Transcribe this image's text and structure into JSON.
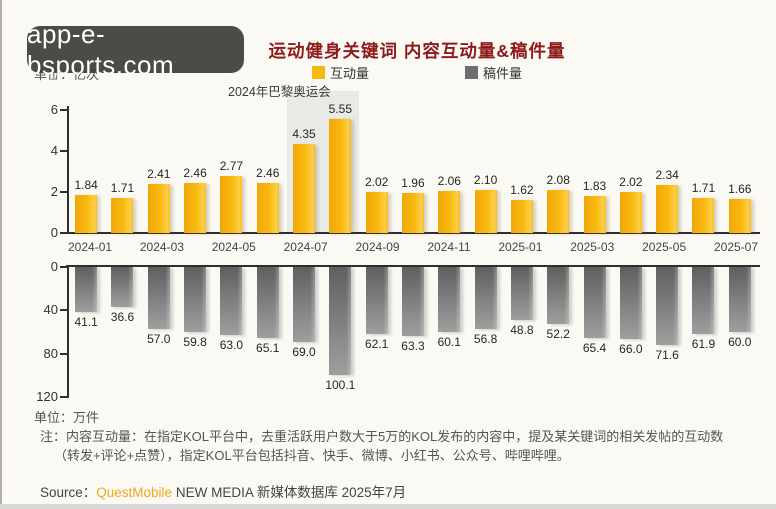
{
  "watermark": {
    "text": "app-e-bsports.com"
  },
  "title": "运动健身关键词 内容互动量&稿件量",
  "legend": {
    "interaction": {
      "label": "互动量",
      "color": "#F5B90F"
    },
    "articles": {
      "label": "稿件量",
      "color": "#6e6e6e"
    }
  },
  "units": {
    "top": "单位：亿次",
    "bottom": "单位：万件"
  },
  "annotation": "2024年巴黎奥运会",
  "note": {
    "line1": "注：内容互动量：在指定KOL平台中，去重活跃用户数大于5万的KOL发布的内容中，提及某关键词的相关发帖的互动数",
    "line2": "（转发+评论+点赞），指定KOL平台包括抖音、快手、微博、小红书、公众号、哔哩哔哩。"
  },
  "source": {
    "prefix": "Source：",
    "brand": "QuestMobile",
    "rest": " NEW MEDIA 新媒体数据库 2025年7月"
  },
  "chart_data": {
    "type": "bar",
    "x": [
      "2024-01",
      "2024-02",
      "2024-03",
      "2024-04",
      "2024-05",
      "2024-06",
      "2024-07",
      "2024-08",
      "2024-09",
      "2024-10",
      "2024-11",
      "2024-12",
      "2025-01",
      "2025-02",
      "2025-03",
      "2025-04",
      "2025-05",
      "2025-06",
      "2025-07"
    ],
    "x_tick_labels": [
      "2024-01",
      "2024-03",
      "2024-05",
      "2024-07",
      "2024-09",
      "2024-11",
      "2025-01",
      "2025-03",
      "2025-05",
      "2025-07"
    ],
    "series": [
      {
        "name": "互动量",
        "unit": "亿次",
        "ylim": [
          0,
          6
        ],
        "yticks": [
          0,
          2,
          4,
          6
        ],
        "orientation": "up",
        "color": "#F5B90F",
        "values": [
          1.84,
          1.71,
          2.41,
          2.46,
          2.77,
          2.46,
          4.35,
          5.55,
          2.02,
          1.96,
          2.06,
          2.1,
          1.62,
          2.08,
          1.83,
          2.02,
          2.34,
          1.71,
          1.66
        ]
      },
      {
        "name": "稿件量",
        "unit": "万件",
        "ylim": [
          0,
          120
        ],
        "yticks": [
          0,
          40,
          80,
          120
        ],
        "orientation": "down",
        "color": "#6e6e6e",
        "values": [
          41.1,
          36.6,
          57.0,
          59.8,
          63.0,
          65.1,
          69.0,
          100.1,
          62.1,
          63.3,
          60.1,
          56.8,
          48.8,
          52.2,
          65.4,
          66.0,
          71.6,
          61.9,
          60.0
        ]
      }
    ],
    "annotations": [
      {
        "label": "2024年巴黎奥运会",
        "months": [
          "2024-07",
          "2024-08"
        ]
      }
    ],
    "grid": false,
    "legend_position": "top"
  }
}
